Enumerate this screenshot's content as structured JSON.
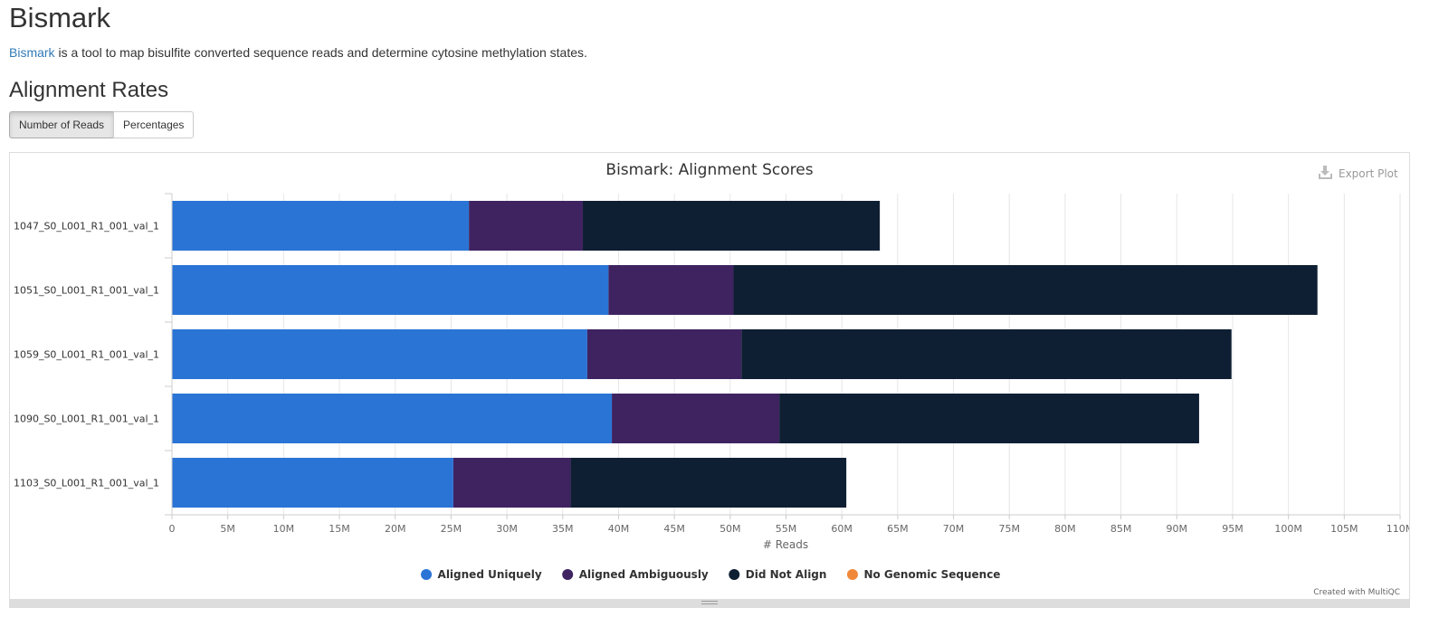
{
  "page": {
    "title": "Bismark",
    "intro_link": "Bismark",
    "intro_text": " is a tool to map bisulfite converted sequence reads and determine cytosine methylation states.",
    "section_title": "Alignment Rates"
  },
  "toggles": {
    "reads_label": "Number of Reads",
    "percent_label": "Percentages"
  },
  "plot": {
    "export_label": "Export Plot",
    "credit": "Created with MultiQC"
  },
  "colors": {
    "aligned_uniquely": "#2a74d6",
    "aligned_ambiguously": "#3f2361",
    "did_not_align": "#0f1f33",
    "no_genomic_sequence": "#f0883a",
    "grid": "#e6e6e6",
    "axis": "#cccccc"
  },
  "chart_data": {
    "type": "bar",
    "orientation": "horizontal",
    "stacked": true,
    "title": "Bismark: Alignment Scores",
    "xlabel": "# Reads",
    "ylabel": "",
    "xlim": [
      0,
      110000000
    ],
    "x_ticks": [
      0,
      5000000,
      10000000,
      15000000,
      20000000,
      25000000,
      30000000,
      35000000,
      40000000,
      45000000,
      50000000,
      55000000,
      60000000,
      65000000,
      70000000,
      75000000,
      80000000,
      85000000,
      90000000,
      95000000,
      100000000,
      105000000,
      110000000
    ],
    "x_tick_labels": [
      "0",
      "5M",
      "10M",
      "15M",
      "20M",
      "25M",
      "30M",
      "35M",
      "40M",
      "45M",
      "50M",
      "55M",
      "60M",
      "65M",
      "70M",
      "75M",
      "80M",
      "85M",
      "90M",
      "95M",
      "100M",
      "105M",
      "110M"
    ],
    "grid": true,
    "legend_position": "bottom-center",
    "categories": [
      "1047_S0_L001_R1_001_val_1",
      "1051_S0_L001_R1_001_val_1",
      "1059_S0_L001_R1_001_val_1",
      "1090_S0_L001_R1_001_val_1",
      "1103_S0_L001_R1_001_val_1"
    ],
    "series": [
      {
        "name": "Aligned Uniquely",
        "values": [
          26600000,
          39100000,
          37200000,
          39400000,
          25200000
        ]
      },
      {
        "name": "Aligned Ambiguously",
        "values": [
          10200000,
          11200000,
          13800000,
          15000000,
          10500000
        ]
      },
      {
        "name": "Did Not Align",
        "values": [
          26600000,
          52300000,
          43900000,
          37600000,
          24700000
        ]
      },
      {
        "name": "No Genomic Sequence",
        "values": [
          0,
          0,
          0,
          0,
          0
        ]
      }
    ]
  }
}
